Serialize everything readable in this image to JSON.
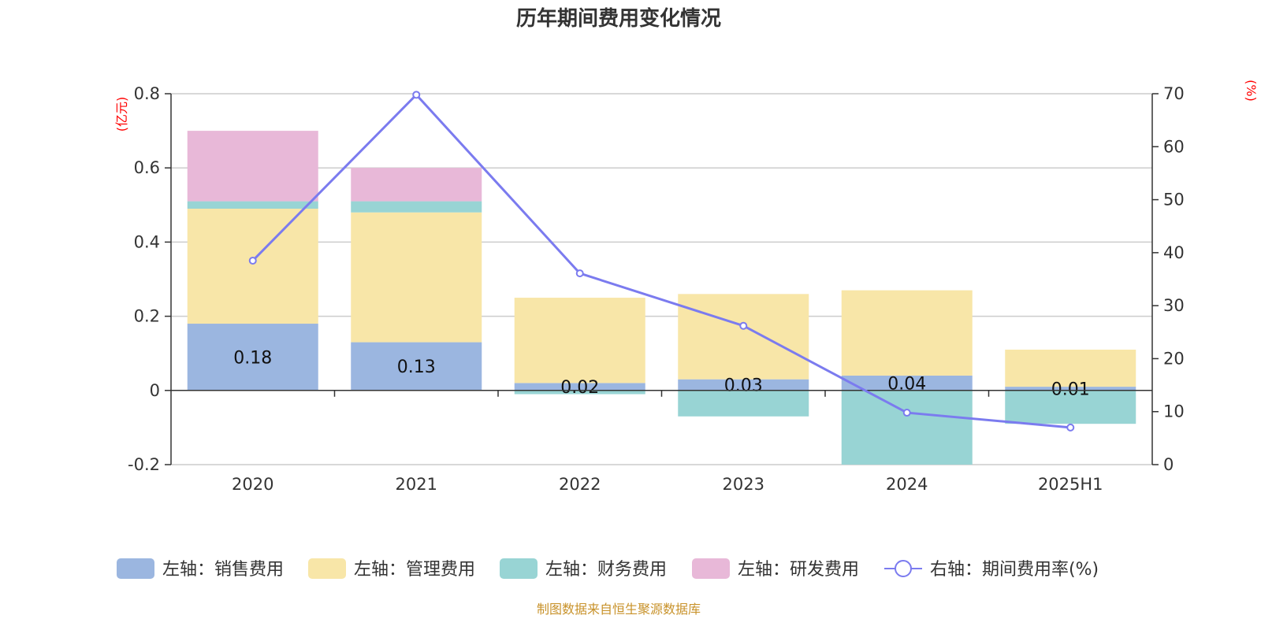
{
  "chart_data": {
    "type": "bar",
    "title": "历年期间费用变化情况",
    "categories": [
      "2020",
      "2021",
      "2022",
      "2023",
      "2024",
      "2025H1"
    ],
    "left_axis": {
      "unit": "(亿元)",
      "ylim": [
        -0.2,
        0.8
      ],
      "ticks": [
        "-0.2",
        "0",
        "0.2",
        "0.4",
        "0.6",
        "0.8"
      ],
      "tick_values": [
        -0.2,
        0,
        0.2,
        0.4,
        0.6,
        0.8
      ]
    },
    "right_axis": {
      "unit": "(%)",
      "ylim": [
        0,
        70
      ],
      "ticks": [
        "0",
        "10",
        "20",
        "30",
        "40",
        "50",
        "60",
        "70"
      ],
      "tick_values": [
        0,
        10,
        20,
        30,
        40,
        50,
        60,
        70
      ]
    },
    "grid": true,
    "stacked": true,
    "series": [
      {
        "name": "左轴：销售费用",
        "axis": "left",
        "kind": "bar",
        "color": "#9bb6e0",
        "values": [
          0.18,
          0.13,
          0.02,
          0.03,
          0.04,
          0.01
        ],
        "labels": [
          "0.18",
          "0.13",
          "0.02",
          "0.03",
          "0.04",
          "0.01"
        ]
      },
      {
        "name": "左轴：管理费用",
        "axis": "left",
        "kind": "bar",
        "color": "#f8e6a8",
        "values": [
          0.31,
          0.35,
          0.23,
          0.23,
          0.23,
          0.1
        ]
      },
      {
        "name": "左轴：财务费用",
        "axis": "left",
        "kind": "bar",
        "color": "#98d4d4",
        "values": [
          0.02,
          0.03,
          -0.01,
          -0.07,
          -0.2,
          -0.09
        ]
      },
      {
        "name": "左轴：研发费用",
        "axis": "left",
        "kind": "bar",
        "color": "#e8b8d8",
        "values": [
          0.19,
          0.09,
          0,
          0,
          0,
          0
        ]
      },
      {
        "name": "右轴：期间费用率(%)",
        "axis": "right",
        "kind": "line",
        "color": "#7b7bef",
        "values": [
          38.5,
          69.8,
          36.1,
          26.2,
          9.8,
          7.0
        ]
      }
    ],
    "legend_position": "bottom"
  },
  "source_note": "制图数据来自恒生聚源数据库"
}
